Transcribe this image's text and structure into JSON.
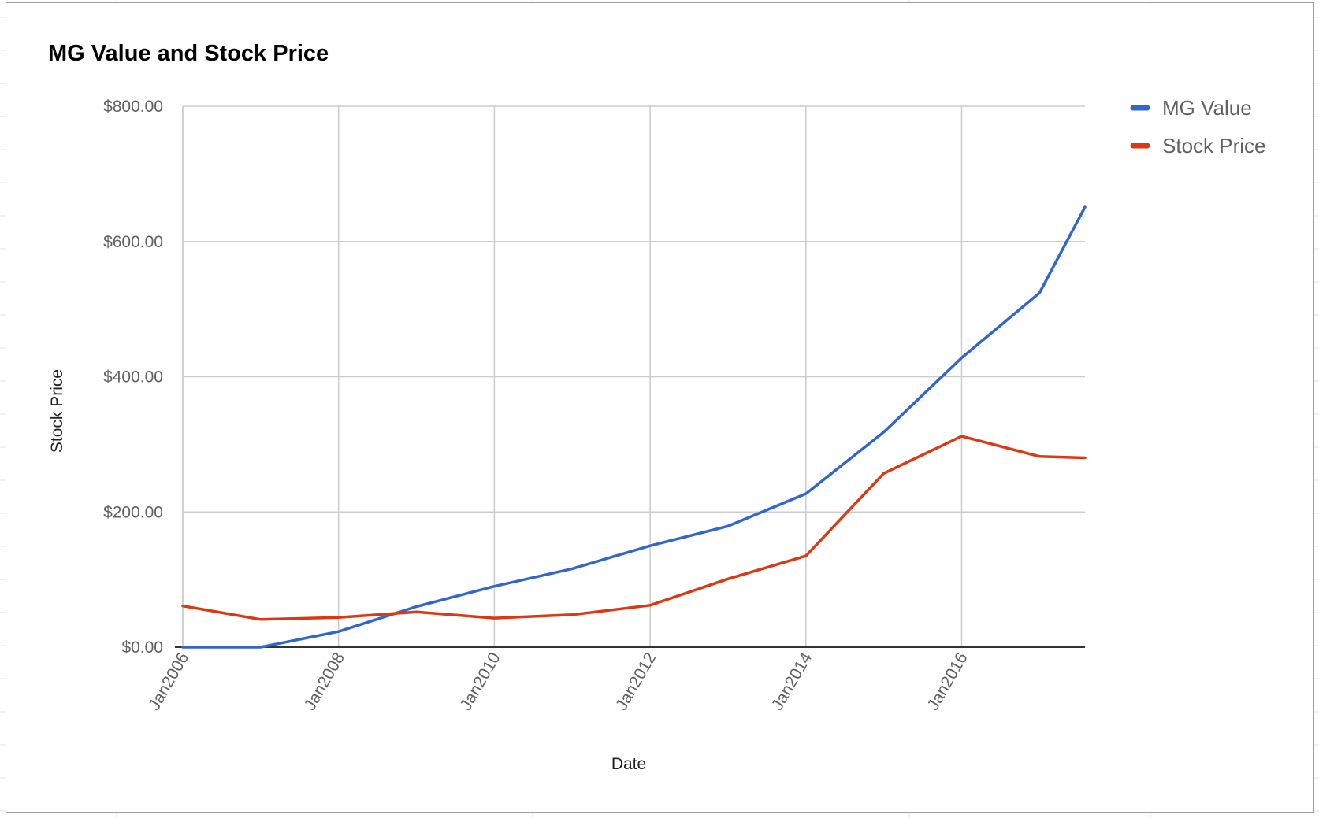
{
  "chart_data": {
    "type": "line",
    "title": "MG Value and Stock Price",
    "xlabel": "Date",
    "ylabel": "Stock Price",
    "y_tick_labels": [
      "$0.00",
      "$200.00",
      "$400.00",
      "$600.00",
      "$800.00"
    ],
    "x_tick_labels": [
      "Jan2006",
      "Jan2008",
      "Jan2010",
      "Jan2012",
      "Jan2014",
      "Jan2016"
    ],
    "ylim": [
      0,
      800
    ],
    "xlim": [
      "2006-01",
      "2017-08"
    ],
    "legend_position": "right",
    "grid": true,
    "x": [
      "2006-01",
      "2007-01",
      "2008-01",
      "2009-01",
      "2010-01",
      "2011-01",
      "2012-01",
      "2013-01",
      "2014-01",
      "2015-01",
      "2016-01",
      "2017-01",
      "2017-08"
    ],
    "series": [
      {
        "name": "MG Value",
        "color": "#3366cc",
        "values": [
          0,
          0,
          23,
          60,
          90,
          116,
          150,
          179,
          227,
          318,
          428,
          524,
          651
        ]
      },
      {
        "name": "Stock Price",
        "color": "#dc3912",
        "values": [
          61,
          41,
          44,
          52,
          43,
          48,
          62,
          101,
          135,
          257,
          312,
          282,
          280
        ]
      }
    ]
  }
}
